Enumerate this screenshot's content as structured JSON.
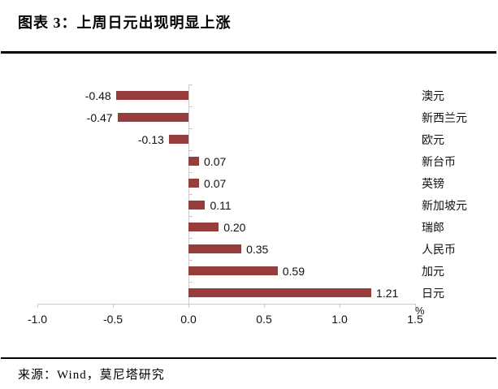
{
  "header": {
    "title": "图表 3：上周日元出现明显上涨"
  },
  "footer": {
    "source": "来源：Wind，莫尼塔研究"
  },
  "chart_data": {
    "type": "bar",
    "orientation": "horizontal",
    "title": "图表 3：上周日元出现明显上涨",
    "categories": [
      "澳元",
      "新西兰元",
      "欧元",
      "新台币",
      "英镑",
      "新加坡元",
      "瑞郎",
      "人民币",
      "加元",
      "日元"
    ],
    "values": [
      -0.48,
      -0.47,
      -0.13,
      0.07,
      0.07,
      0.11,
      0.2,
      0.35,
      0.59,
      1.21
    ],
    "value_labels": [
      "-0.48",
      "-0.47",
      "-0.13",
      "0.07",
      "0.07",
      "0.11",
      "0.20",
      "0.35",
      "0.59",
      "1.21"
    ],
    "x_tick_labels": [
      "-1.0",
      "-0.5",
      "0.0",
      "0.5",
      "1.0",
      "1.5"
    ],
    "x_tick_values": [
      -1.0,
      -0.5,
      0.0,
      0.5,
      1.0,
      1.5
    ],
    "xlim": [
      -1.0,
      1.5
    ],
    "unit_label": "%",
    "xlabel": "",
    "ylabel": "",
    "grid": false,
    "legend": "none",
    "bar_color": "#993C3C",
    "axis_color": "#C9C9C9",
    "text_color": "#111111"
  }
}
